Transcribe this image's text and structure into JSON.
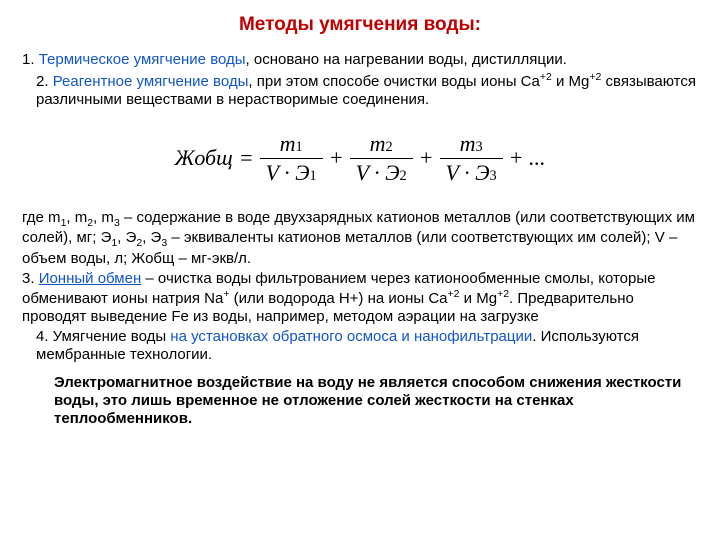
{
  "title": "Методы умягчения воды:",
  "colors": {
    "highlight": "#1155cc",
    "title": "#c00000",
    "text": "#000000",
    "bg": "#ffffff"
  },
  "p1a": "1. ",
  "p1b": "Термическое умягчение воды",
  "p1c": ", основано на нагревании воды, дистилляции.",
  "p2a": "2. ",
  "p2b": "Реагентное умягчение воды",
  "p2c": ", при этом способе очистки воды ионы Ca",
  "p2d": " и Mg",
  "p2e": " связываются различными веществами в нерастворимые соединения.",
  "formula": {
    "lhs": "Жобщ",
    "eq": "=",
    "terms": [
      {
        "num_var": "m",
        "num_sub": "1",
        "den_v": "V",
        "den_e": "Э",
        "den_sub": "1"
      },
      {
        "num_var": "m",
        "num_sub": "2",
        "den_v": "V",
        "den_e": "Э",
        "den_sub": "2"
      },
      {
        "num_var": "m",
        "num_sub": "3",
        "den_v": "V",
        "den_e": "Э",
        "den_sub": "3"
      }
    ],
    "plus": "+",
    "dots": "+ ..."
  },
  "p3a": "где m",
  "p3b": ", m",
  "p3c": ", m",
  "p3d": " – содержание в воде двухзарядных катионов металлов (или соответствующих им солей), мг; Э",
  "p3e": ", Э",
  "p3f": ", Э",
  "p3g": " – эквиваленты катионов металлов (или соответствующих им солей); V – объем воды, л; Жобщ – мг-экв/л.",
  "p4a": "3. ",
  "p4b": "Ионный обмен",
  "p4c": " – очистка воды фильтрованием через катионообменные смолы, которые обменивают ионы натрия Na",
  "p4d": " (или водорода H+) на ионы Ca",
  "p4e": " и Mg",
  "p4f": ". Предварительно проводят выведение Fe из воды, например, методом аэрации на загрузке",
  "p5a": "4. Умягчение воды ",
  "p5b": "на установках обратного осмоса и нанофильтрации",
  "p5c": ". Используются мембранные технологии.",
  "note": "Электромагнитное воздействие на воду не является способом снижения жесткости воды, это лишь временное не отложение солей жесткости на стенках теплообменников."
}
